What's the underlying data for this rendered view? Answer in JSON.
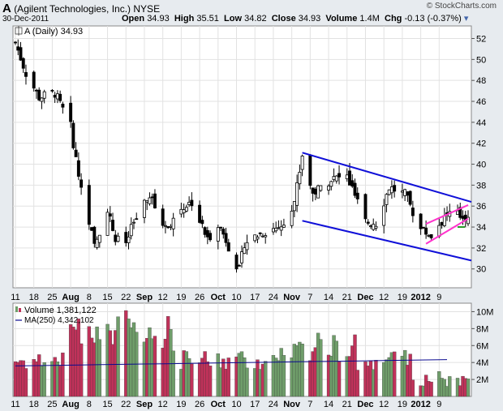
{
  "header": {
    "symbol": "A",
    "company": "(Agilent Technologies, Inc.)",
    "exchange": "NYSE",
    "date": "30-Dec-2011",
    "brand": "© StockCharts.com",
    "open_label": "Open",
    "open": "34.93",
    "high_label": "High",
    "high": "35.51",
    "low_label": "Low",
    "low": "34.82",
    "close_label": "Close",
    "close": "34.93",
    "volume_label": "Volume",
    "volume": "1.4M",
    "chg_label": "Chg",
    "chg": "-0.13 (-0.37%)"
  },
  "price_panel": {
    "legend": "A (Daily) 34.93",
    "y_ticks": [
      30,
      32,
      34,
      36,
      38,
      40,
      42,
      44,
      46,
      48,
      50,
      52
    ],
    "ylim": [
      28.2,
      53.2
    ]
  },
  "volume_panel": {
    "legend_volume": "Volume 1,381,122",
    "legend_ma": "MA(250) 4,342,102",
    "y_ticks": [
      "2M",
      "4M",
      "6M",
      "8M",
      "10M"
    ],
    "ylim_millions": [
      0,
      11
    ]
  },
  "x_axis": {
    "labels": [
      "11",
      "18",
      "25",
      "Aug",
      "8",
      "15",
      "22",
      "Sep",
      "12",
      "19",
      "26",
      "Oct",
      "10",
      "17",
      "24",
      "Nov",
      "7",
      "14",
      "21",
      "Dec",
      "12",
      "19",
      "2012",
      "9"
    ],
    "bold": [
      "Aug",
      "Sep",
      "Oct",
      "Nov",
      "Dec",
      "2012"
    ]
  },
  "colors": {
    "up_volume": "#6f9d6a",
    "down_volume": "#c0325a",
    "channel": "#1010d8",
    "wedge": "#ff33cc",
    "support": "#229922",
    "ma": "#0a0a90",
    "grid": "#e2e2e2"
  },
  "chart_data": {
    "type": "candlestick",
    "title": "A (Agilent Technologies, Inc.) NYSE",
    "x_start": "2011-07-11",
    "x_end": "2011-12-30",
    "trend_channel": {
      "upper": [
        [
          "2011-10-28",
          41.1
        ],
        [
          "2011-12-30",
          36.4
        ]
      ],
      "lower": [
        [
          "2011-10-28",
          34.6
        ],
        [
          "2011-12-30",
          30.8
        ]
      ]
    },
    "wedge": {
      "upper": [
        [
          "2011-12-14",
          34.3
        ],
        [
          "2011-12-30",
          36.1
        ]
      ],
      "lower": [
        [
          "2011-12-14",
          32.4
        ],
        [
          "2011-12-30",
          34.8
        ]
      ]
    },
    "support_level": 34.0,
    "ma250_volume_millions": 4.34,
    "close_path": [
      [
        "2011-07-11",
        51.6
      ],
      [
        "2011-07-15",
        48.7
      ],
      [
        "2011-07-20",
        46.4
      ],
      [
        "2011-07-26",
        46.8
      ],
      [
        "2011-08-01",
        43.6
      ],
      [
        "2011-08-04",
        38.9
      ],
      [
        "2011-08-08",
        34.6
      ],
      [
        "2011-08-10",
        32.1
      ],
      [
        "2011-08-15",
        35.8
      ],
      [
        "2011-08-18",
        32.8
      ],
      [
        "2011-08-22",
        32.5
      ],
      [
        "2011-08-25",
        34.4
      ],
      [
        "2011-08-31",
        36.9
      ],
      [
        "2011-09-06",
        33.9
      ],
      [
        "2011-09-12",
        35.8
      ],
      [
        "2011-09-16",
        36.4
      ],
      [
        "2011-09-22",
        32.8
      ],
      [
        "2011-09-26",
        34.4
      ],
      [
        "2011-09-29",
        32.8
      ],
      [
        "2011-10-04",
        29.8
      ],
      [
        "2011-10-06",
        32.5
      ],
      [
        "2011-10-13",
        33.5
      ],
      [
        "2011-10-20",
        34.1
      ],
      [
        "2011-10-25",
        36.5
      ],
      [
        "2011-10-28",
        40.9
      ],
      [
        "2011-11-01",
        37.2
      ],
      [
        "2011-11-08",
        38.6
      ],
      [
        "2011-11-14",
        38.8
      ],
      [
        "2011-11-21",
        34.5
      ],
      [
        "2011-11-25",
        34.4
      ],
      [
        "2011-11-30",
        37.8
      ],
      [
        "2011-12-06",
        37.1
      ],
      [
        "2011-12-12",
        33.8
      ],
      [
        "2011-12-16",
        33.2
      ],
      [
        "2011-12-22",
        35.3
      ],
      [
        "2011-12-30",
        34.93
      ]
    ]
  }
}
